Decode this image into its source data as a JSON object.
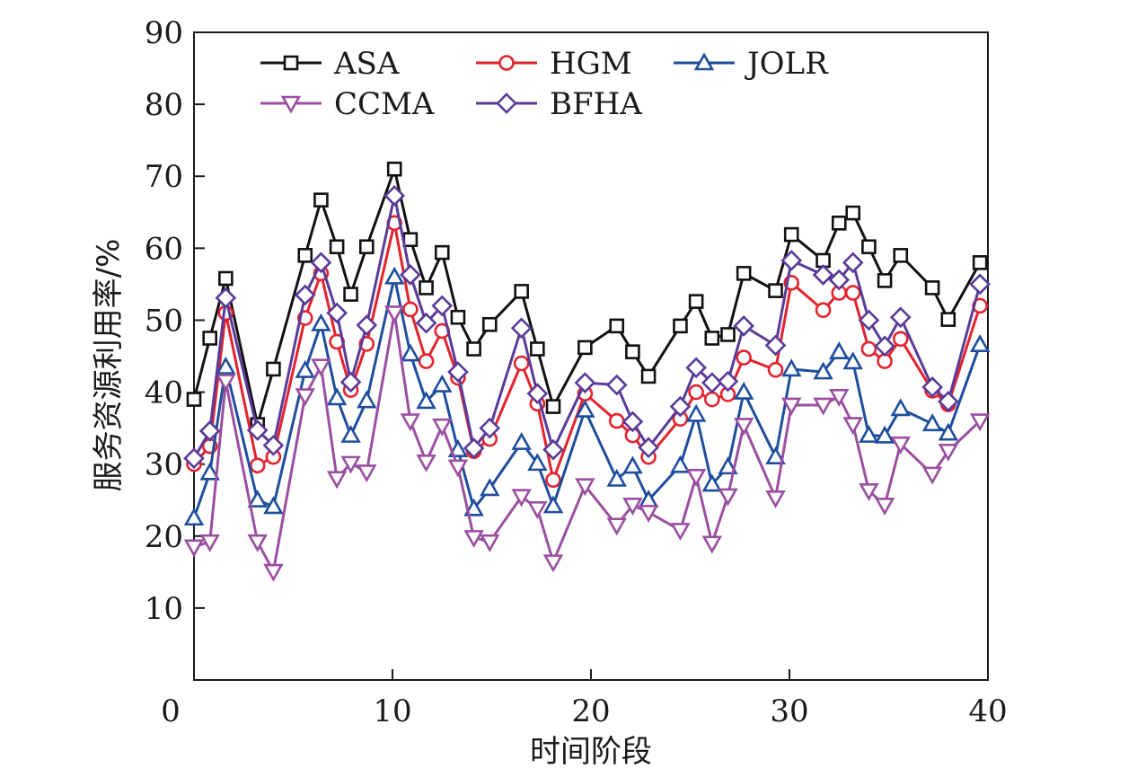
{
  "chart_data": {
    "type": "line",
    "xlabel": "时间阶段",
    "ylabel": "服务资源利用率/%",
    "xlim": [
      0,
      40
    ],
    "ylim": [
      0,
      90
    ],
    "xticks": [
      0,
      10,
      20,
      30,
      40
    ],
    "yticks": [
      10,
      20,
      30,
      40,
      50,
      60,
      70,
      80,
      90
    ],
    "grid": false,
    "legend_position": "top",
    "x": [
      0,
      0.8,
      1.6,
      3.2,
      4,
      5.6,
      6.4,
      7.2,
      7.9,
      8.7,
      10.1,
      10.9,
      11.7,
      12.5,
      13.3,
      14.1,
      14.9,
      16.5,
      17.3,
      18.1,
      19.7,
      21.3,
      22.1,
      22.9,
      24.5,
      25.3,
      26.1,
      26.9,
      27.7,
      29.3,
      30.1,
      31.7,
      32.5,
      33.2,
      34,
      34.8,
      35.6,
      37.2,
      38,
      39.6
    ],
    "series": [
      {
        "name": "ASA",
        "color": "#111111",
        "marker": "square",
        "values": [
          39,
          47.5,
          55.8,
          35.5,
          43.2,
          59,
          66.7,
          60.2,
          53.6,
          60.2,
          71,
          61.2,
          54.5,
          59.4,
          50.4,
          46,
          49.4,
          54,
          46,
          38,
          46.2,
          49.2,
          45.6,
          42.2,
          49.2,
          52.6,
          47.5,
          48,
          56.5,
          54.1,
          61.9,
          58.3,
          63.5,
          64.9,
          60.2,
          55.5,
          59,
          54.5,
          50.1,
          58
        ]
      },
      {
        "name": "HGM",
        "color": "#e3232e",
        "marker": "circle",
        "values": [
          30,
          32.5,
          51,
          29.8,
          31,
          50.3,
          56.5,
          47,
          40.3,
          46.7,
          63.5,
          51.5,
          44.3,
          48.5,
          42,
          31.8,
          33.5,
          44,
          38.4,
          27.8,
          39.8,
          36,
          34,
          31,
          36.3,
          40,
          39,
          39.7,
          44.8,
          43.1,
          55.2,
          51.4,
          53.8,
          53.8,
          46,
          44.3,
          47.4,
          40.2,
          38.3,
          52
        ]
      },
      {
        "name": "JOLR",
        "color": "#1f4e9c",
        "marker": "triangle-up",
        "values": [
          22.5,
          28.8,
          43.5,
          25,
          24.1,
          43,
          49.5,
          39.2,
          34,
          38.8,
          56,
          45.3,
          38.7,
          41,
          32,
          23.8,
          26.6,
          33,
          30.1,
          24.2,
          37.5,
          27.9,
          29.7,
          25,
          29.8,
          36.9,
          27.2,
          29.6,
          40,
          31,
          43.2,
          42.8,
          45.6,
          44.2,
          34,
          33.9,
          37.7,
          35.6,
          34.3,
          46.6
        ]
      },
      {
        "name": "CCMA",
        "color": "#9a4fa0",
        "marker": "triangle-down",
        "values": [
          18.5,
          19.2,
          41.5,
          19.2,
          15.1,
          39.5,
          43.6,
          28,
          30.1,
          28.9,
          51,
          36,
          30.3,
          35.3,
          29.6,
          19.8,
          19.2,
          25.5,
          23.8,
          16.4,
          27,
          21.5,
          24.3,
          23.3,
          20.8,
          28.3,
          19,
          25.6,
          35.4,
          25.3,
          38.2,
          38.2,
          39.4,
          35.5,
          26.3,
          24.3,
          32.8,
          28.6,
          31.8,
          36
        ]
      },
      {
        "name": "BFHA",
        "color": "#5a3b98",
        "marker": "diamond",
        "values": [
          30.8,
          34.6,
          53.1,
          34.7,
          32.6,
          53.5,
          58,
          51,
          41.4,
          49.3,
          67.3,
          56.3,
          49.6,
          52,
          42.8,
          32.2,
          35,
          48.9,
          39.8,
          32,
          41.3,
          41,
          35.9,
          32.3,
          38,
          43.4,
          41.3,
          41.5,
          49.2,
          46.5,
          58.3,
          56.3,
          55.6,
          58,
          50,
          46.4,
          50.4,
          40.7,
          38.7,
          55
        ]
      }
    ]
  }
}
